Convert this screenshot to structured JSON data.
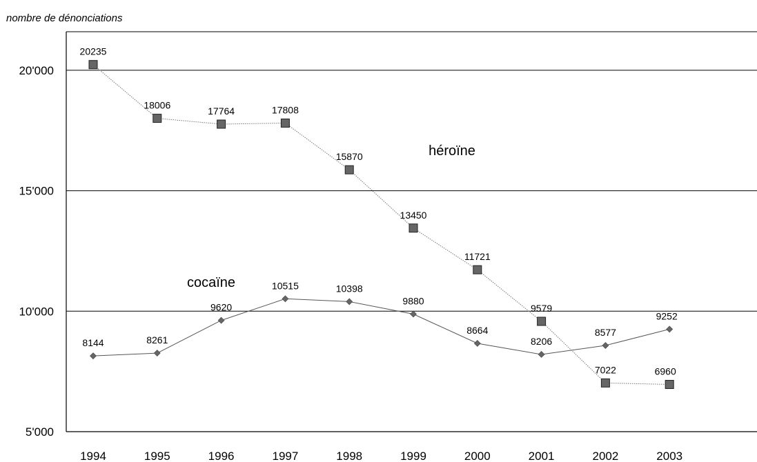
{
  "chart_data": {
    "type": "line",
    "title": "",
    "ylabel": "nombre de dénonciations",
    "xlabel": "",
    "x": [
      "1994",
      "1995",
      "1996",
      "1997",
      "1998",
      "1999",
      "2000",
      "2001",
      "2002",
      "2003"
    ],
    "ylim": [
      5000,
      21600
    ],
    "yticks": [
      5000,
      10000,
      15000,
      20000
    ],
    "ytick_labels": [
      "5'000",
      "10'000",
      "15'000",
      "20'000"
    ],
    "grid": "horizontal",
    "legend": "none",
    "series": [
      {
        "name": "héroïne",
        "marker": "square",
        "line_style": "dotted",
        "color": "#666666",
        "values": [
          20235,
          18006,
          17764,
          17808,
          15870,
          13450,
          11721,
          9579,
          7022,
          6960
        ],
        "labels": [
          "20235",
          "18006",
          "17764",
          "17808",
          "15870",
          "13450",
          "11721",
          "9579",
          "7022",
          "6960"
        ]
      },
      {
        "name": "cocaïne",
        "marker": "diamond",
        "line_style": "solid",
        "color": "#666666",
        "values": [
          8144,
          8261,
          9620,
          10515,
          10398,
          9880,
          8664,
          8206,
          8577,
          9252
        ],
        "labels": [
          "8144",
          "8261",
          "9620",
          "10515",
          "10398",
          "9880",
          "8664",
          "8206",
          "8577",
          "9252"
        ]
      }
    ]
  }
}
